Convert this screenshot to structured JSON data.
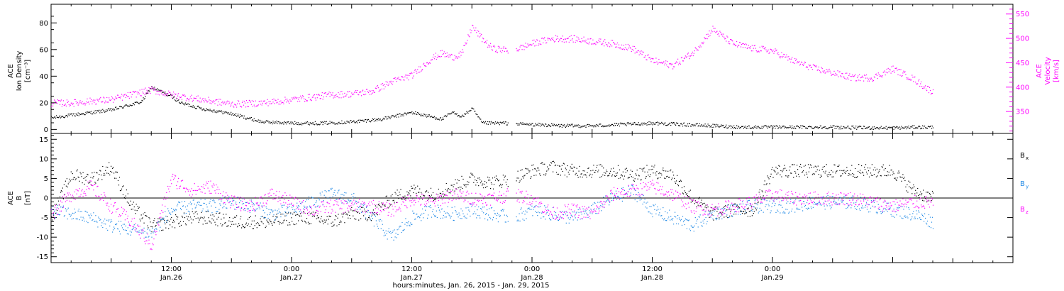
{
  "chart_data": [
    {
      "type": "scatter",
      "panel": "top",
      "ylabel_left": [
        "ACE",
        "Ion Density",
        "[cm⁻³]"
      ],
      "ylabel_right": [
        "ACE",
        "Velocity",
        "[km/s]"
      ],
      "ylim_left": [
        -3,
        94
      ],
      "ylim_right": [
        305,
        570
      ],
      "left_ticks": [
        "0",
        "20",
        "40",
        "60",
        "80"
      ],
      "right_ticks": [
        "350",
        "400",
        "450",
        "500",
        "550"
      ],
      "series": [
        {
          "color": "#000000",
          "axis": "left",
          "x": [
            0,
            3,
            6,
            9,
            10,
            12,
            13,
            15,
            18,
            21,
            24,
            27,
            30,
            33,
            36,
            39,
            40,
            41,
            42,
            43,
            44,
            45,
            48,
            51,
            54,
            57,
            60,
            63,
            66,
            69,
            72,
            75,
            78,
            81,
            84,
            85,
            86,
            87,
            88
          ],
          "y": [
            9,
            12,
            15,
            21,
            32,
            25,
            20,
            16,
            12,
            6,
            5,
            5,
            6,
            8,
            13,
            8,
            13,
            10,
            16,
            5,
            5,
            5,
            4,
            3,
            3,
            4,
            5,
            4,
            3,
            2,
            2,
            2,
            2,
            1.5,
            1.5,
            1.5,
            2,
            2,
            2
          ]
        },
        {
          "color": "#ff00ff",
          "axis": "right",
          "x": [
            0,
            2,
            4,
            6,
            8,
            10,
            12,
            14,
            16,
            18,
            20,
            22,
            24,
            26,
            28,
            30,
            32,
            34,
            36,
            38,
            39,
            40,
            41,
            42,
            43,
            44,
            46,
            48,
            50,
            52,
            54,
            56,
            58,
            60,
            62,
            64,
            66,
            68,
            69,
            70,
            71,
            72,
            74,
            76,
            78,
            80,
            82,
            84,
            86,
            88
          ],
          "y": [
            368,
            368,
            372,
            375,
            385,
            395,
            385,
            378,
            372,
            366,
            367,
            370,
            375,
            380,
            385,
            387,
            392,
            412,
            425,
            460,
            470,
            462,
            470,
            525,
            500,
            480,
            475,
            490,
            500,
            500,
            495,
            490,
            480,
            455,
            445,
            470,
            520,
            490,
            485,
            480,
            478,
            475,
            455,
            440,
            430,
            420,
            420,
            438,
            418,
            390
          ]
        }
      ]
    },
    {
      "type": "scatter",
      "panel": "bottom",
      "ylabel": [
        "ACE",
        "B",
        "[nT]"
      ],
      "ylim": [
        -16.5,
        16.5
      ],
      "ticks": [
        "-15",
        "-10",
        "-5",
        "0",
        "5",
        "10",
        "15"
      ],
      "legend": [
        {
          "label": "B",
          "sub": "x",
          "color": "#000000"
        },
        {
          "label": "B",
          "sub": "y",
          "color": "#1e88e5"
        },
        {
          "label": "B",
          "sub": "z",
          "color": "#ff00ff"
        }
      ],
      "series": [
        {
          "color": "#000000",
          "x": [
            0,
            2,
            4,
            6,
            8,
            10,
            12,
            14,
            16,
            18,
            20,
            22,
            24,
            26,
            28,
            30,
            32,
            34,
            36,
            38,
            40,
            42,
            44,
            46,
            48,
            50,
            52,
            54,
            56,
            58,
            60,
            62,
            64,
            66,
            68,
            70,
            72,
            74,
            76,
            78,
            80,
            82,
            84,
            86,
            88
          ],
          "y": [
            -5,
            6,
            5,
            8,
            -2,
            -7,
            -6,
            -5,
            -5,
            -6,
            -6,
            -6,
            -5,
            -5,
            -6,
            -4,
            -4,
            0,
            2,
            1,
            3,
            5,
            4,
            5,
            7,
            8,
            7,
            7,
            7,
            6,
            7,
            6,
            0,
            -4,
            -3,
            -3,
            7,
            7,
            7,
            7,
            7,
            7,
            7,
            2,
            0
          ]
        },
        {
          "color": "#1e88e5",
          "x": [
            0,
            2,
            4,
            6,
            8,
            10,
            12,
            14,
            16,
            18,
            20,
            22,
            24,
            26,
            28,
            30,
            32,
            34,
            36,
            38,
            40,
            42,
            44,
            46,
            48,
            50,
            52,
            54,
            56,
            58,
            60,
            62,
            64,
            66,
            68,
            70,
            72,
            74,
            76,
            78,
            80,
            82,
            84,
            86,
            88
          ],
          "y": [
            -3,
            -4,
            -5,
            -7,
            -8,
            -9,
            -3,
            -2,
            -2,
            -1,
            -2,
            -4,
            -3,
            -1,
            1,
            0,
            -5,
            -10,
            -5,
            -3,
            -4,
            -3,
            -4,
            -5,
            -3,
            -4,
            -5,
            -3,
            0,
            2,
            -3,
            -5,
            -7,
            -4,
            -3,
            -2,
            -2,
            -2,
            -1,
            -1,
            -1,
            -2,
            -3,
            -4,
            -6
          ]
        },
        {
          "color": "#ff00ff",
          "x": [
            0,
            2,
            4,
            6,
            8,
            10,
            12,
            14,
            16,
            18,
            20,
            22,
            24,
            26,
            28,
            30,
            32,
            34,
            36,
            38,
            40,
            42,
            44,
            46,
            48,
            50,
            52,
            54,
            56,
            58,
            60,
            62,
            64,
            66,
            68,
            70,
            72,
            74,
            76,
            78,
            80,
            82,
            84,
            86,
            88
          ],
          "y": [
            -4,
            1,
            3,
            -2,
            -6,
            -12,
            5,
            2,
            3,
            -1,
            -2,
            1,
            -1,
            -3,
            -2,
            -2,
            -2,
            -3,
            0,
            -1,
            1,
            0,
            0,
            1,
            0,
            -4,
            -3,
            -4,
            1,
            2,
            3,
            1,
            -2,
            -3,
            -2,
            -1,
            1,
            0,
            0,
            0,
            0,
            -1,
            -2,
            -1,
            -1
          ]
        }
      ]
    }
  ],
  "xaxis": {
    "hours_range": [
      0,
      96
    ],
    "xlabel": "hours:minutes, Jan. 26, 2015 - Jan. 29, 2015",
    "tick_labels": [
      {
        "hour": 12,
        "time": "12:00",
        "date": "Jan.26"
      },
      {
        "hour": 24,
        "time": "0:00",
        "date": "Jan.27"
      },
      {
        "hour": 36,
        "time": "12:00",
        "date": "Jan.27"
      },
      {
        "hour": 48,
        "time": "0:00",
        "date": "Jan.28"
      },
      {
        "hour": 60,
        "time": "12:00",
        "date": "Jan.28"
      },
      {
        "hour": 72,
        "time": "0:00",
        "date": "Jan.29"
      }
    ]
  }
}
